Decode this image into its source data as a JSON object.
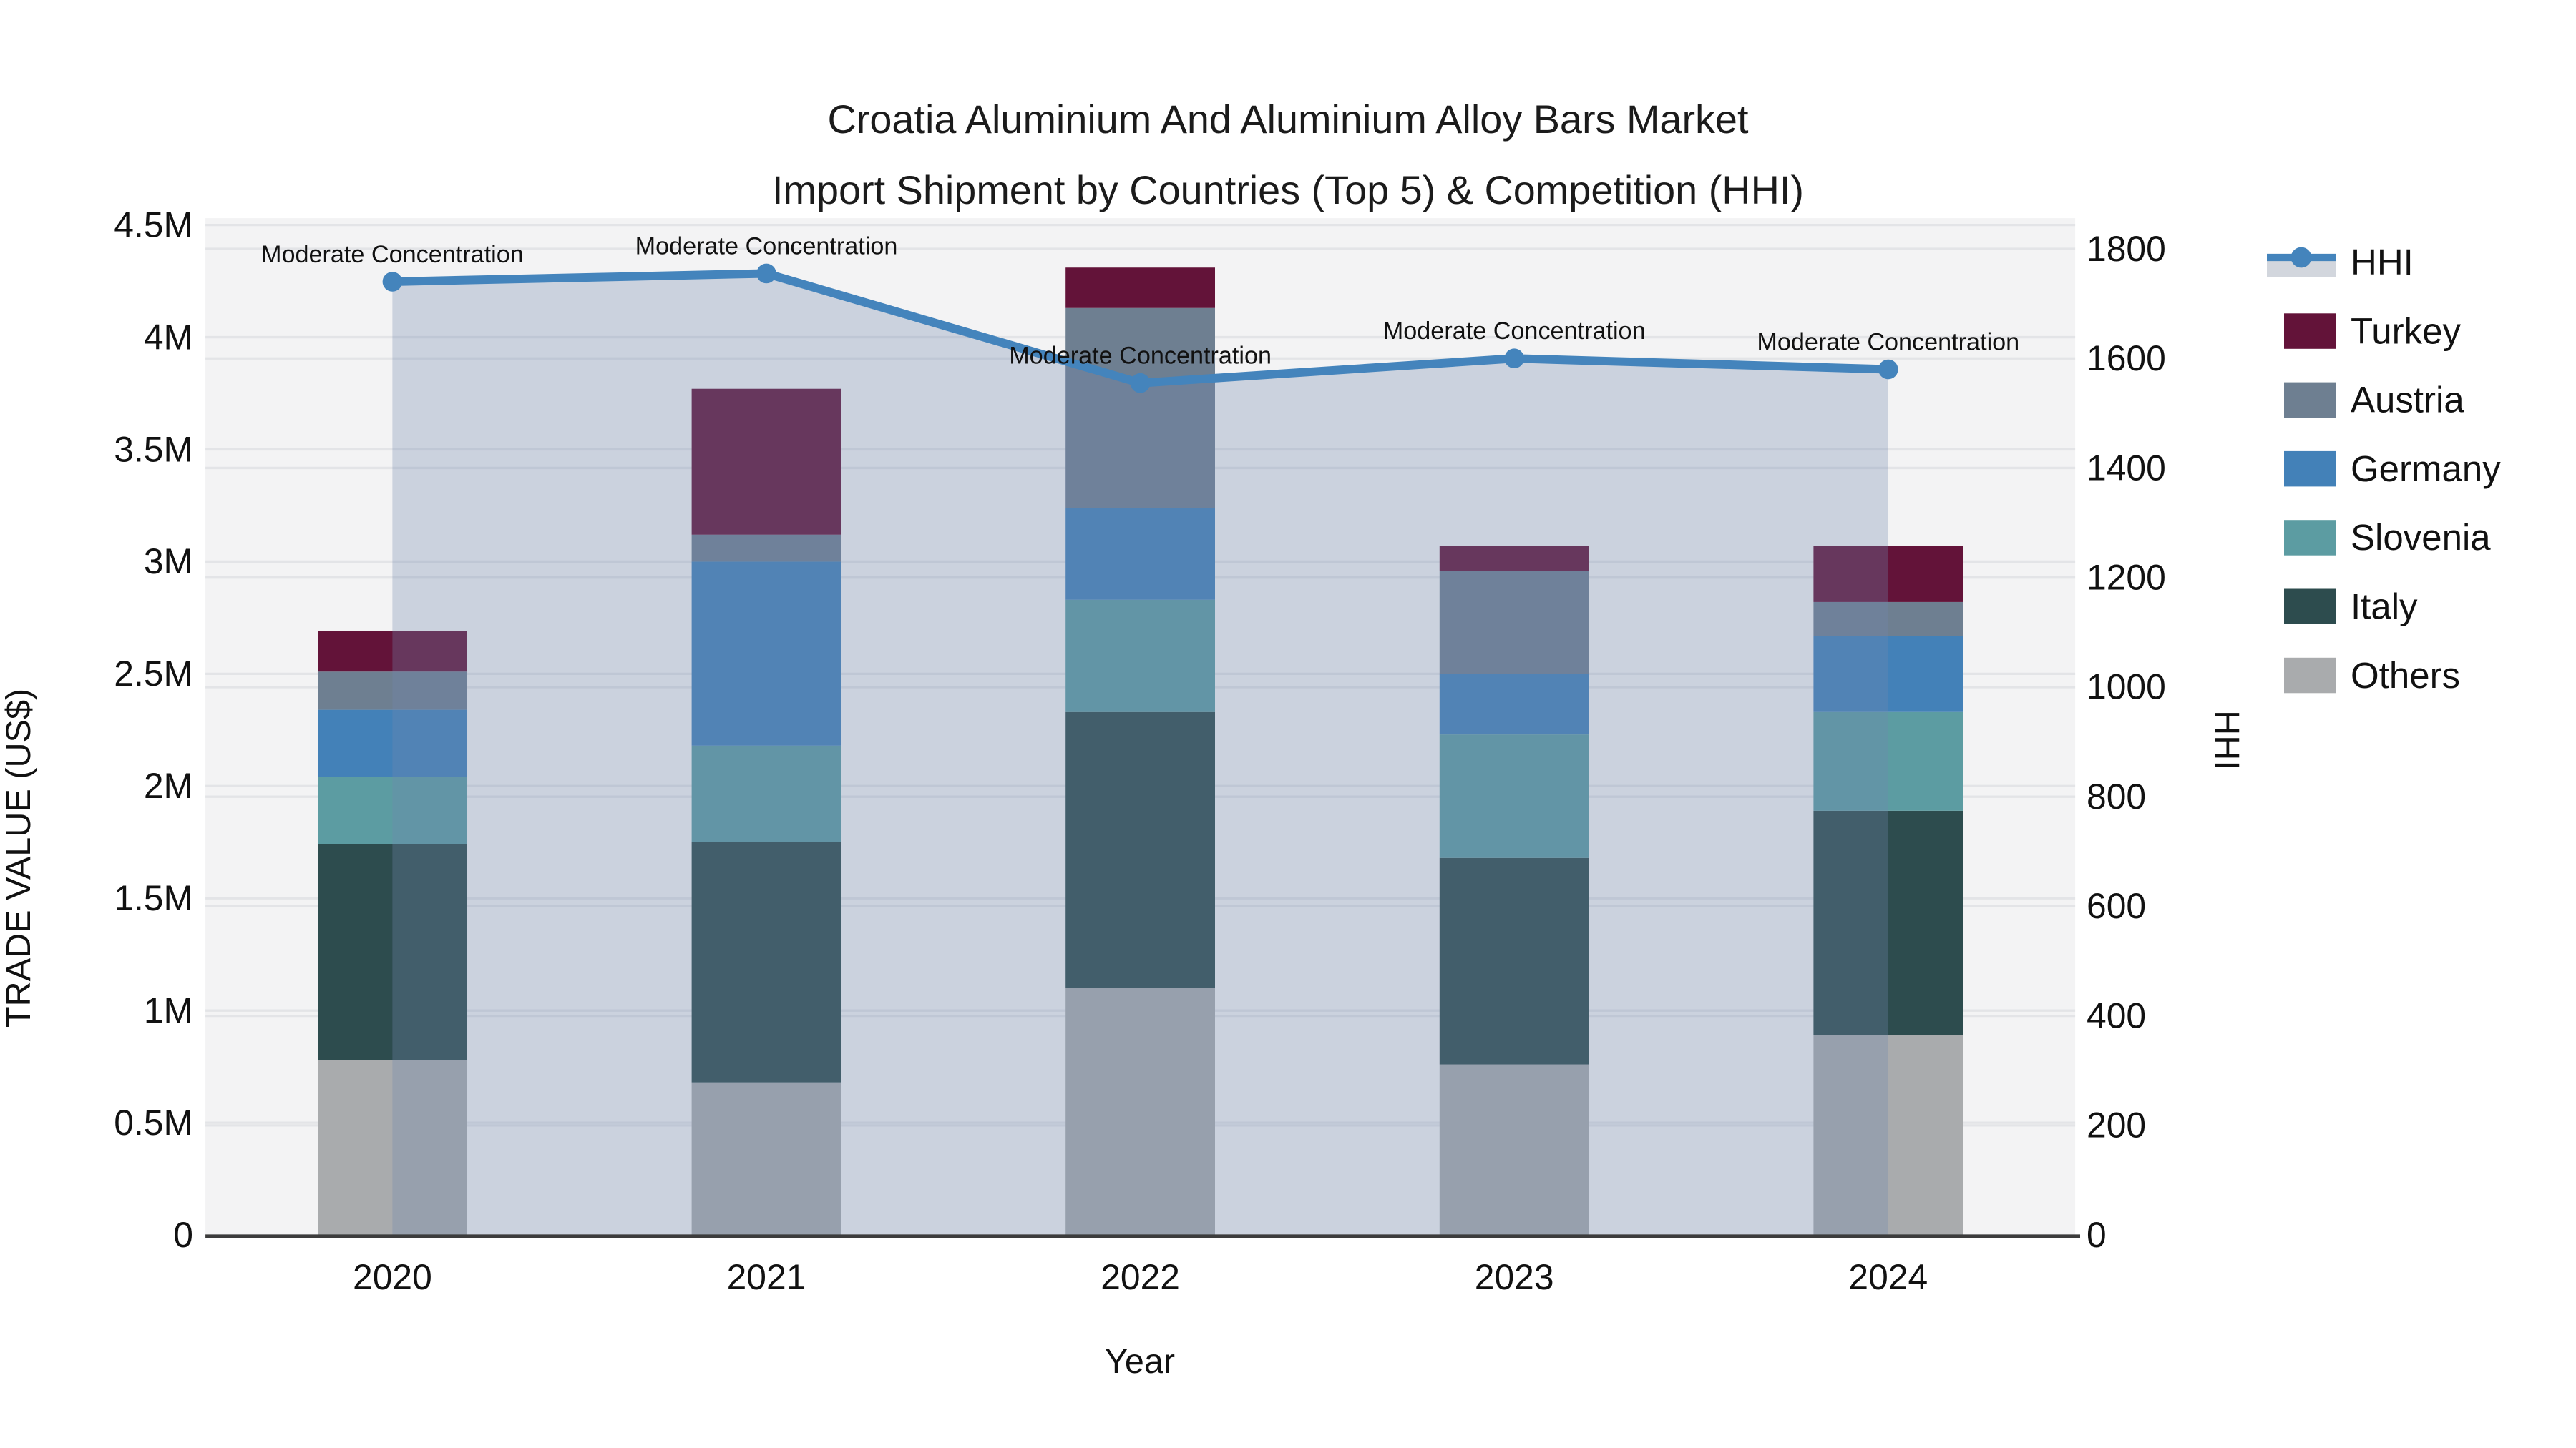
{
  "figure": {
    "title_line1": "Croatia Aluminium And Aluminium Alloy Bars Market",
    "title_line2": "Import Shipment by Countries (Top 5) & Competition (HHI)"
  },
  "axes": {
    "left_title": "TRADE VALUE (US$)",
    "left_ticks": [
      "0",
      "0.5M",
      "1M",
      "1.5M",
      "2M",
      "2.5M",
      "3M",
      "3.5M",
      "4M",
      "4.5M"
    ],
    "right_title": "HHI",
    "right_ticks": [
      "0",
      "200",
      "400",
      "600",
      "800",
      "1000",
      "1200",
      "1400",
      "1600",
      "1800"
    ],
    "x_title": "Year",
    "x_ticks": [
      "2020",
      "2021",
      "2022",
      "2023",
      "2024"
    ]
  },
  "legend": {
    "items": [
      {
        "label": "HHI",
        "type": "line",
        "color": "#4484bc",
        "band": "#d2d6dd"
      },
      {
        "label": "Turkey",
        "type": "swatch",
        "color": "#631339"
      },
      {
        "label": "Austria",
        "type": "swatch",
        "color": "#6e7f91"
      },
      {
        "label": "Germany",
        "type": "swatch",
        "color": "#4381b8"
      },
      {
        "label": "Slovenia",
        "type": "swatch",
        "color": "#5c9ca2"
      },
      {
        "label": "Italy",
        "type": "swatch",
        "color": "#2d4c4e"
      },
      {
        "label": "Others",
        "type": "swatch",
        "color": "#a9abad"
      }
    ]
  },
  "chart_data": {
    "type": "bar",
    "subtype": "stacked-bars-with-line-overlay",
    "categories": [
      "2020",
      "2021",
      "2022",
      "2023",
      "2024"
    ],
    "bar_value_unit": "USD millions (left axis, 0 - 4.5M)",
    "stack_bottom_to_top": [
      "Others",
      "Italy",
      "Slovenia",
      "Germany",
      "Austria",
      "Turkey"
    ],
    "series": [
      {
        "name": "Turkey",
        "color": "#631339",
        "values": [
          0.18,
          0.65,
          0.18,
          0.11,
          0.25
        ]
      },
      {
        "name": "Austria",
        "color": "#6e7f91",
        "values": [
          0.17,
          0.12,
          0.89,
          0.46,
          0.15
        ]
      },
      {
        "name": "Germany",
        "color": "#4381b8",
        "values": [
          0.3,
          0.82,
          0.41,
          0.27,
          0.34
        ]
      },
      {
        "name": "Slovenia",
        "color": "#5c9ca2",
        "values": [
          0.3,
          0.43,
          0.5,
          0.55,
          0.44
        ]
      },
      {
        "name": "Italy",
        "color": "#2d4c4e",
        "values": [
          0.96,
          1.07,
          1.23,
          0.92,
          1.0
        ]
      },
      {
        "name": "Others",
        "color": "#a9abad",
        "values": [
          0.78,
          0.68,
          1.1,
          0.76,
          0.89
        ]
      }
    ],
    "bar_totals_millions": [
      2.69,
      3.77,
      4.31,
      3.07,
      3.07
    ],
    "line_series": {
      "name": "HHI",
      "color": "#4484bc",
      "area_fill": "rgba(113,135,174,0.31)",
      "values": [
        1740,
        1755,
        1555,
        1600,
        1580
      ]
    },
    "annotations": [
      {
        "x": "2020",
        "text": "Moderate Concentration"
      },
      {
        "x": "2021",
        "text": "Moderate Concentration"
      },
      {
        "x": "2022",
        "text": "Moderate Concentration"
      },
      {
        "x": "2023",
        "text": "Moderate Concentration"
      },
      {
        "x": "2024",
        "text": "Moderate Concentration"
      }
    ],
    "ylim_left": [
      0,
      4500000
    ],
    "ylim_right": [
      0,
      1800
    ],
    "grid": true,
    "plot_bg": "#f3f3f4",
    "grid_color": "#e3e4e7",
    "legend_position": "right"
  }
}
